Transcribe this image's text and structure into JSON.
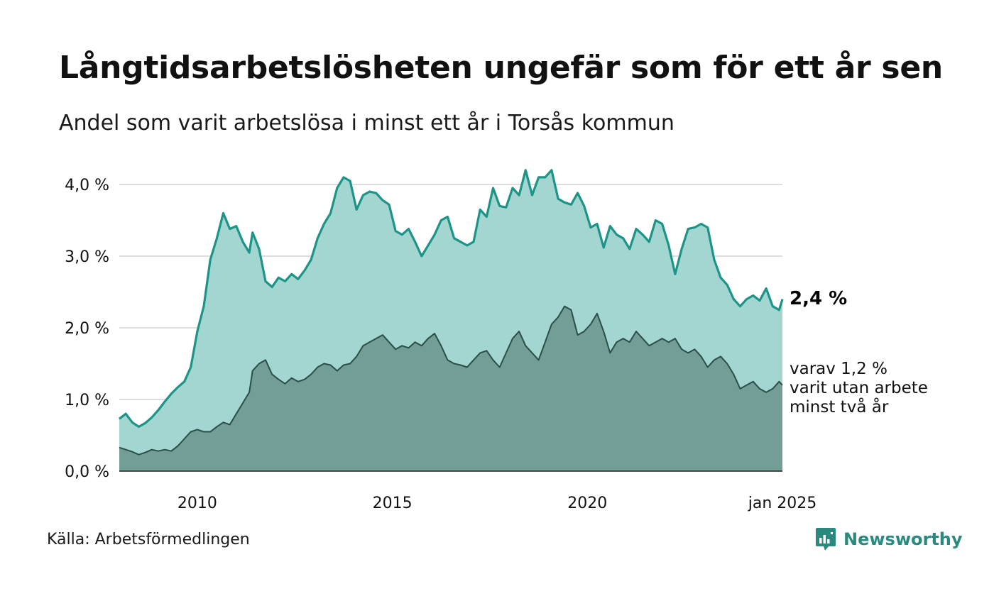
{
  "title": "Långtidsarbetslösheten ungefär som för ett år sen",
  "subtitle": "Andel som varit arbetslösa i minst ett år i Torsås kommun",
  "source": "Källa: Arbetsförmedlingen",
  "brand": {
    "name": "Newsworthy",
    "icon": "newsworthy-logo-icon",
    "color": "#2a8a7f"
  },
  "colors": {
    "area_total": "#a3d6d1",
    "line_total": "#1d9488",
    "area_long": "#729e97",
    "line_long": "#2b4e48",
    "grid": "#dddddd"
  },
  "annotations": {
    "total_end": "2,4 %",
    "long_end": [
      "varav 1,2 %",
      "varit utan arbete",
      "minst två år"
    ]
  },
  "chart_data": {
    "type": "area",
    "title": "Långtidsarbetslösheten ungefär som för ett år sen",
    "subtitle": "Andel som varit arbetslösa i minst ett år i Torsås kommun",
    "xlabel": "",
    "ylabel": "",
    "x_range": [
      "2008-01",
      "2025-01"
    ],
    "x_ticks": [
      {
        "x": "2010-01",
        "label": "2010"
      },
      {
        "x": "2015-01",
        "label": "2015"
      },
      {
        "x": "2020-01",
        "label": "2020"
      },
      {
        "x": "2025-01",
        "label": "jan 2025"
      }
    ],
    "y_ticks": [
      {
        "value": 0.0,
        "label": "0,0 %"
      },
      {
        "value": 1.0,
        "label": "1,0 %"
      },
      {
        "value": 2.0,
        "label": "2,0 %"
      },
      {
        "value": 3.0,
        "label": "3,0 %"
      },
      {
        "value": 4.0,
        "label": "4,0 %"
      }
    ],
    "ylim": [
      0,
      4.2
    ],
    "grid": true,
    "series": [
      {
        "points": [
          [
            "2008-01",
            0.73
          ],
          [
            "2008-03",
            0.8
          ],
          [
            "2008-05",
            0.68
          ],
          [
            "2008-07",
            0.62
          ],
          [
            "2008-09",
            0.67
          ],
          [
            "2008-11",
            0.75
          ],
          [
            "2009-01",
            0.85
          ],
          [
            "2009-03",
            0.97
          ],
          [
            "2009-05",
            1.08
          ],
          [
            "2009-07",
            1.17
          ],
          [
            "2009-09",
            1.25
          ],
          [
            "2009-11",
            1.45
          ],
          [
            "2010-01",
            1.95
          ],
          [
            "2010-03",
            2.3
          ],
          [
            "2010-05",
            2.95
          ],
          [
            "2010-07",
            3.25
          ],
          [
            "2010-09",
            3.6
          ],
          [
            "2010-11",
            3.38
          ],
          [
            "2011-01",
            3.42
          ],
          [
            "2011-03",
            3.2
          ],
          [
            "2011-05",
            3.05
          ],
          [
            "2011-06",
            3.33
          ],
          [
            "2011-08",
            3.1
          ],
          [
            "2011-10",
            2.65
          ],
          [
            "2011-12",
            2.57
          ],
          [
            "2012-02",
            2.7
          ],
          [
            "2012-04",
            2.65
          ],
          [
            "2012-06",
            2.75
          ],
          [
            "2012-08",
            2.68
          ],
          [
            "2012-10",
            2.8
          ],
          [
            "2012-12",
            2.95
          ],
          [
            "2013-02",
            3.25
          ],
          [
            "2013-04",
            3.45
          ],
          [
            "2013-06",
            3.6
          ],
          [
            "2013-08",
            3.95
          ],
          [
            "2013-10",
            4.1
          ],
          [
            "2013-12",
            4.05
          ],
          [
            "2014-02",
            3.65
          ],
          [
            "2014-04",
            3.85
          ],
          [
            "2014-06",
            3.9
          ],
          [
            "2014-08",
            3.88
          ],
          [
            "2014-10",
            3.78
          ],
          [
            "2014-12",
            3.72
          ],
          [
            "2015-02",
            3.35
          ],
          [
            "2015-04",
            3.3
          ],
          [
            "2015-06",
            3.38
          ],
          [
            "2015-08",
            3.2
          ],
          [
            "2015-10",
            3.0
          ],
          [
            "2015-12",
            3.15
          ],
          [
            "2016-02",
            3.3
          ],
          [
            "2016-04",
            3.5
          ],
          [
            "2016-06",
            3.55
          ],
          [
            "2016-08",
            3.25
          ],
          [
            "2016-10",
            3.2
          ],
          [
            "2016-12",
            3.15
          ],
          [
            "2017-02",
            3.2
          ],
          [
            "2017-04",
            3.65
          ],
          [
            "2017-06",
            3.55
          ],
          [
            "2017-08",
            3.95
          ],
          [
            "2017-10",
            3.7
          ],
          [
            "2017-12",
            3.68
          ],
          [
            "2018-02",
            3.95
          ],
          [
            "2018-04",
            3.85
          ],
          [
            "2018-06",
            4.2
          ],
          [
            "2018-08",
            3.85
          ],
          [
            "2018-10",
            4.1
          ],
          [
            "2018-12",
            4.1
          ],
          [
            "2019-02",
            4.2
          ],
          [
            "2019-04",
            3.8
          ],
          [
            "2019-06",
            3.75
          ],
          [
            "2019-08",
            3.72
          ],
          [
            "2019-10",
            3.88
          ],
          [
            "2019-12",
            3.7
          ],
          [
            "2020-02",
            3.4
          ],
          [
            "2020-04",
            3.45
          ],
          [
            "2020-06",
            3.12
          ],
          [
            "2020-08",
            3.42
          ],
          [
            "2020-10",
            3.3
          ],
          [
            "2020-12",
            3.25
          ],
          [
            "2021-02",
            3.1
          ],
          [
            "2021-04",
            3.38
          ],
          [
            "2021-06",
            3.3
          ],
          [
            "2021-08",
            3.2
          ],
          [
            "2021-10",
            3.5
          ],
          [
            "2021-12",
            3.45
          ],
          [
            "2022-02",
            3.15
          ],
          [
            "2022-04",
            2.75
          ],
          [
            "2022-06",
            3.1
          ],
          [
            "2022-08",
            3.38
          ],
          [
            "2022-10",
            3.4
          ],
          [
            "2022-12",
            3.45
          ],
          [
            "2023-02",
            3.4
          ],
          [
            "2023-04",
            2.95
          ],
          [
            "2023-06",
            2.7
          ],
          [
            "2023-08",
            2.6
          ],
          [
            "2023-10",
            2.4
          ],
          [
            "2023-12",
            2.3
          ],
          [
            "2024-02",
            2.4
          ],
          [
            "2024-04",
            2.45
          ],
          [
            "2024-06",
            2.38
          ],
          [
            "2024-08",
            2.55
          ],
          [
            "2024-10",
            2.3
          ],
          [
            "2024-12",
            2.25
          ],
          [
            "2025-01",
            2.4
          ]
        ]
      },
      {
        "points": [
          [
            "2008-01",
            0.33
          ],
          [
            "2008-03",
            0.3
          ],
          [
            "2008-05",
            0.27
          ],
          [
            "2008-07",
            0.23
          ],
          [
            "2008-09",
            0.26
          ],
          [
            "2008-11",
            0.3
          ],
          [
            "2009-01",
            0.28
          ],
          [
            "2009-03",
            0.3
          ],
          [
            "2009-05",
            0.28
          ],
          [
            "2009-07",
            0.35
          ],
          [
            "2009-09",
            0.45
          ],
          [
            "2009-11",
            0.55
          ],
          [
            "2010-01",
            0.58
          ],
          [
            "2010-03",
            0.55
          ],
          [
            "2010-05",
            0.55
          ],
          [
            "2010-07",
            0.62
          ],
          [
            "2010-09",
            0.68
          ],
          [
            "2010-11",
            0.65
          ],
          [
            "2011-01",
            0.8
          ],
          [
            "2011-03",
            0.95
          ],
          [
            "2011-05",
            1.1
          ],
          [
            "2011-06",
            1.4
          ],
          [
            "2011-08",
            1.5
          ],
          [
            "2011-10",
            1.55
          ],
          [
            "2011-12",
            1.35
          ],
          [
            "2012-02",
            1.28
          ],
          [
            "2012-04",
            1.22
          ],
          [
            "2012-06",
            1.3
          ],
          [
            "2012-08",
            1.25
          ],
          [
            "2012-10",
            1.28
          ],
          [
            "2012-12",
            1.35
          ],
          [
            "2013-02",
            1.45
          ],
          [
            "2013-04",
            1.5
          ],
          [
            "2013-06",
            1.48
          ],
          [
            "2013-08",
            1.4
          ],
          [
            "2013-10",
            1.48
          ],
          [
            "2013-12",
            1.5
          ],
          [
            "2014-02",
            1.6
          ],
          [
            "2014-04",
            1.75
          ],
          [
            "2014-06",
            1.8
          ],
          [
            "2014-08",
            1.85
          ],
          [
            "2014-10",
            1.9
          ],
          [
            "2014-12",
            1.8
          ],
          [
            "2015-02",
            1.7
          ],
          [
            "2015-04",
            1.75
          ],
          [
            "2015-06",
            1.72
          ],
          [
            "2015-08",
            1.8
          ],
          [
            "2015-10",
            1.75
          ],
          [
            "2015-12",
            1.85
          ],
          [
            "2016-02",
            1.92
          ],
          [
            "2016-04",
            1.75
          ],
          [
            "2016-06",
            1.55
          ],
          [
            "2016-08",
            1.5
          ],
          [
            "2016-10",
            1.48
          ],
          [
            "2016-12",
            1.45
          ],
          [
            "2017-02",
            1.55
          ],
          [
            "2017-04",
            1.65
          ],
          [
            "2017-06",
            1.68
          ],
          [
            "2017-08",
            1.55
          ],
          [
            "2017-10",
            1.45
          ],
          [
            "2017-12",
            1.65
          ],
          [
            "2018-02",
            1.85
          ],
          [
            "2018-04",
            1.95
          ],
          [
            "2018-06",
            1.75
          ],
          [
            "2018-08",
            1.65
          ],
          [
            "2018-10",
            1.55
          ],
          [
            "2018-12",
            1.8
          ],
          [
            "2019-02",
            2.05
          ],
          [
            "2019-04",
            2.15
          ],
          [
            "2019-06",
            2.3
          ],
          [
            "2019-08",
            2.25
          ],
          [
            "2019-10",
            1.9
          ],
          [
            "2019-12",
            1.95
          ],
          [
            "2020-02",
            2.05
          ],
          [
            "2020-04",
            2.2
          ],
          [
            "2020-06",
            1.95
          ],
          [
            "2020-08",
            1.65
          ],
          [
            "2020-10",
            1.8
          ],
          [
            "2020-12",
            1.85
          ],
          [
            "2021-02",
            1.8
          ],
          [
            "2021-04",
            1.95
          ],
          [
            "2021-06",
            1.85
          ],
          [
            "2021-08",
            1.75
          ],
          [
            "2021-10",
            1.8
          ],
          [
            "2021-12",
            1.85
          ],
          [
            "2022-02",
            1.8
          ],
          [
            "2022-04",
            1.85
          ],
          [
            "2022-06",
            1.7
          ],
          [
            "2022-08",
            1.65
          ],
          [
            "2022-10",
            1.7
          ],
          [
            "2022-12",
            1.6
          ],
          [
            "2023-02",
            1.45
          ],
          [
            "2023-04",
            1.55
          ],
          [
            "2023-06",
            1.6
          ],
          [
            "2023-08",
            1.5
          ],
          [
            "2023-10",
            1.35
          ],
          [
            "2023-12",
            1.15
          ],
          [
            "2024-02",
            1.2
          ],
          [
            "2024-04",
            1.25
          ],
          [
            "2024-06",
            1.15
          ],
          [
            "2024-08",
            1.1
          ],
          [
            "2024-10",
            1.15
          ],
          [
            "2024-12",
            1.25
          ],
          [
            "2025-01",
            1.2
          ]
        ]
      }
    ]
  }
}
